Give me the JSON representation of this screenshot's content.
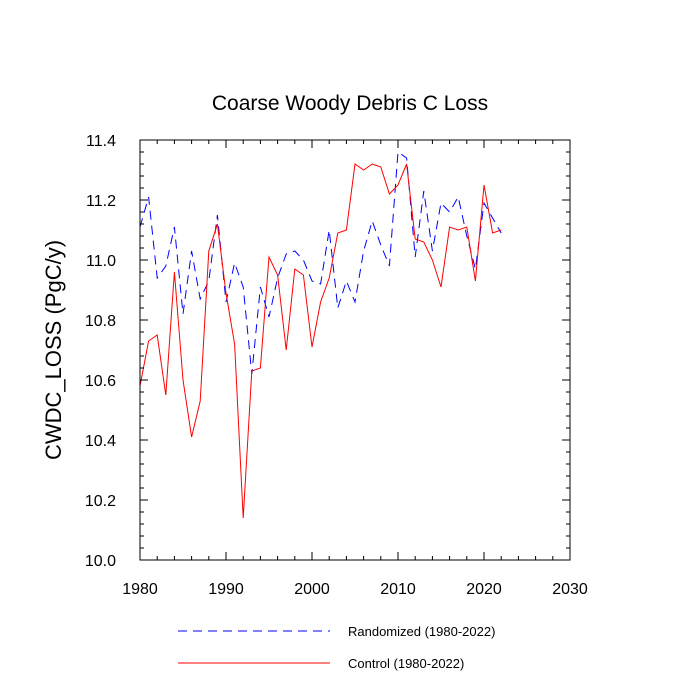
{
  "chart_data": {
    "type": "line",
    "title": "Coarse Woody Debris C Loss",
    "xlabel": "",
    "ylabel": "CWDC_LOSS  (PgC/y)",
    "xlim": [
      1980,
      2030
    ],
    "ylim": [
      10.0,
      11.4
    ],
    "x_ticks": [
      1980,
      1990,
      2000,
      2010,
      2020,
      2030
    ],
    "x_tick_labels": [
      "1980",
      "1990",
      "2000",
      "2010",
      "2020",
      "2030"
    ],
    "y_ticks": [
      10.0,
      10.2,
      10.4,
      10.6,
      10.8,
      11.0,
      11.2,
      11.4
    ],
    "y_tick_labels": [
      "10.0",
      "10.2",
      "10.4",
      "10.6",
      "10.8",
      "11.0",
      "11.2",
      "11.4"
    ],
    "grid": false,
    "legend_position": "bottom",
    "x": [
      1980,
      1981,
      1982,
      1983,
      1984,
      1985,
      1986,
      1987,
      1988,
      1989,
      1990,
      1991,
      1992,
      1993,
      1994,
      1995,
      1996,
      1997,
      1998,
      1999,
      2000,
      2001,
      2002,
      2003,
      2004,
      2005,
      2006,
      2007,
      2008,
      2009,
      2010,
      2011,
      2012,
      2013,
      2014,
      2015,
      2016,
      2017,
      2018,
      2019,
      2020,
      2021,
      2022
    ],
    "series": [
      {
        "name": "Randomized (1980-2022)",
        "color": "#0000ff",
        "style": "dashed",
        "values": [
          11.11,
          11.21,
          10.94,
          10.98,
          11.11,
          10.82,
          11.03,
          10.87,
          10.93,
          11.15,
          10.86,
          10.99,
          10.91,
          10.62,
          10.91,
          10.81,
          10.94,
          11.02,
          11.03,
          11.0,
          10.93,
          10.92,
          11.1,
          10.84,
          10.93,
          10.86,
          11.03,
          11.13,
          11.05,
          10.98,
          11.36,
          11.34,
          11.01,
          11.23,
          11.03,
          11.19,
          11.16,
          11.21,
          11.08,
          10.97,
          11.19,
          11.14,
          11.09
        ]
      },
      {
        "name": "Control (1980-2022)",
        "color": "#ff0000",
        "style": "solid",
        "values": [
          10.58,
          10.73,
          10.75,
          10.55,
          10.96,
          10.6,
          10.41,
          10.53,
          11.03,
          11.12,
          10.89,
          10.72,
          10.14,
          10.63,
          10.64,
          11.01,
          10.95,
          10.7,
          10.97,
          10.95,
          10.71,
          10.86,
          10.94,
          11.09,
          11.1,
          11.32,
          11.3,
          11.32,
          11.31,
          11.22,
          11.25,
          11.32,
          11.07,
          11.06,
          11.0,
          10.91,
          11.11,
          11.1,
          11.11,
          10.93,
          11.25,
          11.09,
          11.1
        ]
      }
    ]
  }
}
